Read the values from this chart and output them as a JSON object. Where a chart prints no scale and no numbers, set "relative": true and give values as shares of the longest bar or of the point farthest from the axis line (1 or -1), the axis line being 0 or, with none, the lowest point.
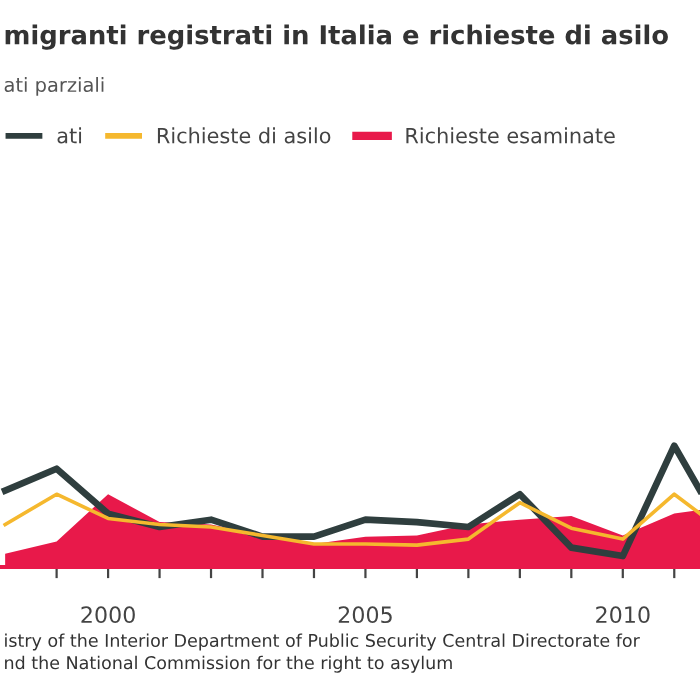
{
  "chart_data": {
    "type": "line",
    "title": "migranti registrati in Italia e richieste di asilo",
    "subtitle": "ati parziali",
    "relative": true,
    "tick_labels": "x",
    "grid": false,
    "legend": "top left",
    "marker": "none",
    "line_style": "solid",
    "x": [
      1998,
      1999,
      2000,
      2001,
      2002,
      2003,
      2004,
      2005,
      2006,
      2007,
      2008,
      2009,
      2010,
      2011,
      2011.5
    ],
    "xlim": [
      1997.9,
      2011.5
    ],
    "xticks": [
      {
        "value": 1999,
        "label": null
      },
      2000,
      {
        "value": 2001,
        "label": null
      },
      {
        "value": 2002,
        "label": null
      },
      {
        "value": 2003,
        "label": null
      },
      {
        "value": 2004,
        "label": null
      },
      2005,
      {
        "value": 2006,
        "label": null
      },
      {
        "value": 2007,
        "label": null
      },
      {
        "value": 2008,
        "label": null
      },
      {
        "value": 2009,
        "label": null
      },
      2010,
      {
        "value": 2011,
        "label": null
      }
    ],
    "series": [
      {
        "name": "Richieste esaminate",
        "type": "area",
        "color": "#e8194a",
        "values": [
          0.11,
          0.21,
          0.6,
          0.37,
          0.35,
          0.26,
          0.19,
          0.25,
          0.26,
          0.35,
          0.39,
          0.42,
          0.26,
          0.44,
          0.47
        ]
      },
      {
        "name": "ati",
        "type": "line",
        "color": "#2f3e3e",
        "values": [
          0.63,
          0.81,
          0.44,
          0.33,
          0.39,
          0.25,
          0.25,
          0.39,
          0.37,
          0.33,
          0.6,
          0.16,
          0.09,
          1,
          0.63
        ]
      },
      {
        "name": "Richieste di asilo",
        "type": "line",
        "color": "#f5b82e",
        "values": [
          0.35,
          0.6,
          0.4,
          0.35,
          0.33,
          0.26,
          0.19,
          0.19,
          0.18,
          0.23,
          0.53,
          0.32,
          0.23,
          0.6,
          0.44
        ]
      }
    ],
    "annotations": [
      "istry of the Interior Department of Public Security Central Directorate for\nnd the National Commission for the right to asylum"
    ]
  }
}
